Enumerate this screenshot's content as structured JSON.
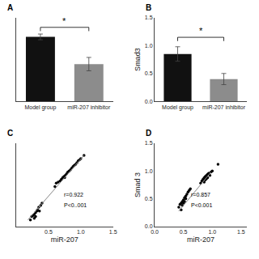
{
  "chart_data": [
    {
      "type": "bar",
      "title": "A",
      "categories": [
        "Model group",
        "miR-207 inhibitor"
      ],
      "values": [
        1.35,
        0.78
      ],
      "errors": [
        0.06,
        0.14
      ],
      "colors": [
        "#111111",
        "#8c8c8c"
      ],
      "ylim": [
        0,
        1.75
      ],
      "tick_labels": "x",
      "grid": false,
      "significance": {
        "y": 1.55,
        "text": "*"
      }
    },
    {
      "type": "bar",
      "title": "B",
      "categories": [
        "Model group",
        "miR-207 inhibitor"
      ],
      "values": [
        0.85,
        0.4
      ],
      "errors": [
        0.13,
        0.1
      ],
      "colors": [
        "#111111",
        "#8c8c8c"
      ],
      "ylabel": "Smad3",
      "ylim": [
        0,
        1.5
      ],
      "yticks": [
        {
          "value": 0.0,
          "label": "0.0"
        },
        0.5,
        {
          "value": 1.0,
          "label": "1.0"
        },
        1.5
      ],
      "grid": false,
      "significance": {
        "y": 1.15,
        "text": "*"
      }
    },
    {
      "type": "scatter",
      "title": "C",
      "xlabel": "miR-207",
      "xlim": [
        0.0,
        1.5
      ],
      "ylim": [
        0.0,
        1.5
      ],
      "xticks": [
        0.5,
        {
          "value": 1.0,
          "label": "1.0"
        },
        1.5
      ],
      "tick_labels": "x",
      "grid": false,
      "annotations": [
        "r=0.922",
        "P<0..001"
      ],
      "series": [
        {
          "type": "scatter",
          "marker": "circle",
          "color": "#000000",
          "x": [
            0.22,
            0.24,
            0.26,
            0.28,
            0.28,
            0.3,
            0.3,
            0.32,
            0.33,
            0.35,
            0.36,
            0.38,
            0.4,
            0.6,
            0.62,
            0.65,
            0.68,
            0.7,
            0.72,
            0.74,
            0.75,
            0.76,
            0.78,
            0.8,
            0.82,
            0.84,
            0.86,
            0.88,
            0.9,
            0.92,
            0.94,
            0.96,
            0.98,
            1.0,
            1.05
          ],
          "values": [
            0.12,
            0.18,
            0.2,
            0.22,
            0.15,
            0.25,
            0.18,
            0.28,
            0.3,
            0.35,
            0.28,
            0.38,
            0.42,
            0.72,
            0.78,
            0.8,
            0.82,
            0.85,
            0.88,
            0.9,
            0.88,
            0.92,
            0.95,
            0.98,
            1.0,
            1.02,
            1.05,
            1.08,
            1.1,
            1.12,
            1.15,
            1.18,
            1.2,
            1.22,
            1.28
          ]
        },
        {
          "type": "line",
          "line_style": "solid",
          "color": "#888888",
          "x": [
            0.18,
            1.05
          ],
          "values": [
            0.12,
            1.28
          ]
        }
      ]
    },
    {
      "type": "scatter",
      "title": "D",
      "xlabel": "miR-207",
      "ylabel": "Smad 3",
      "xlim": [
        0.0,
        1.6
      ],
      "ylim": [
        0.0,
        1.5
      ],
      "xticks": [
        {
          "value": 0.0,
          "label": "0.0"
        },
        0.5,
        {
          "value": 1.0,
          "label": "1.0"
        },
        1.5
      ],
      "yticks": [
        {
          "value": 0.0,
          "label": "0.0"
        },
        0.5,
        {
          "value": 1.0,
          "label": "1.0"
        },
        1.5
      ],
      "grid": false,
      "annotations": [
        "r=0.857",
        "P<0.001"
      ],
      "series": [
        {
          "type": "scatter",
          "marker": "circle",
          "color": "#000000",
          "x": [
            0.42,
            0.44,
            0.46,
            0.46,
            0.48,
            0.48,
            0.5,
            0.5,
            0.52,
            0.52,
            0.54,
            0.54,
            0.56,
            0.58,
            0.6,
            0.62,
            0.8,
            0.82,
            0.84,
            0.86,
            0.86,
            0.88,
            0.88,
            0.9,
            0.9,
            0.92,
            0.92,
            0.94,
            0.96,
            0.98,
            1.0,
            1.1
          ],
          "values": [
            0.35,
            0.4,
            0.42,
            0.3,
            0.45,
            0.38,
            0.48,
            0.42,
            0.52,
            0.45,
            0.55,
            0.5,
            0.58,
            0.62,
            0.65,
            0.68,
            0.78,
            0.82,
            0.85,
            0.88,
            0.8,
            0.9,
            0.84,
            0.92,
            0.86,
            0.94,
            0.88,
            0.96,
            0.92,
            0.98,
            1.0,
            1.12
          ]
        },
        {
          "type": "line",
          "line_style": "solid",
          "color": "#888888",
          "x": [
            0.42,
            0.98
          ],
          "values": [
            0.28,
            0.98
          ]
        }
      ]
    }
  ]
}
